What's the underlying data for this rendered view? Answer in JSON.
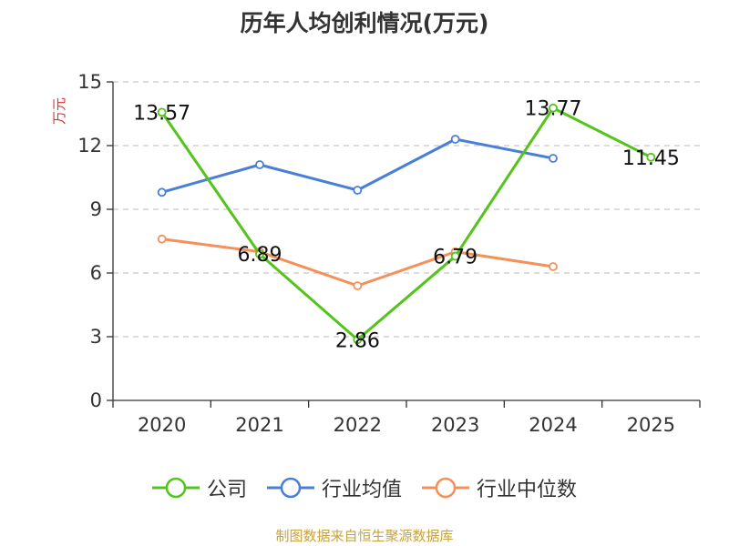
{
  "chart_data": {
    "type": "line",
    "title": "历年人均创利情况(万元)",
    "ylabel": "万元",
    "ylim": [
      0,
      15
    ],
    "yticks": [
      0,
      3,
      6,
      9,
      12,
      15
    ],
    "categories": [
      "2020",
      "2021",
      "2022",
      "2023",
      "2024",
      "2025"
    ],
    "grid": true,
    "legend_position": "bottom",
    "series": [
      {
        "name": "公司",
        "color": "#52c41a",
        "values": [
          13.57,
          6.89,
          2.86,
          6.79,
          13.77,
          11.45
        ],
        "labels": [
          "13.57",
          "6.89",
          "2.86",
          "6.79",
          "13.77",
          "11.45"
        ]
      },
      {
        "name": "行业均值",
        "color": "#4a7fd8",
        "values": [
          9.8,
          11.1,
          9.9,
          12.3,
          11.4,
          null
        ]
      },
      {
        "name": "行业中位数",
        "color": "#f5905a",
        "values": [
          7.6,
          7.0,
          5.4,
          7.0,
          6.3,
          null
        ]
      }
    ]
  },
  "source": "制图数据来自恒生聚源数据库"
}
